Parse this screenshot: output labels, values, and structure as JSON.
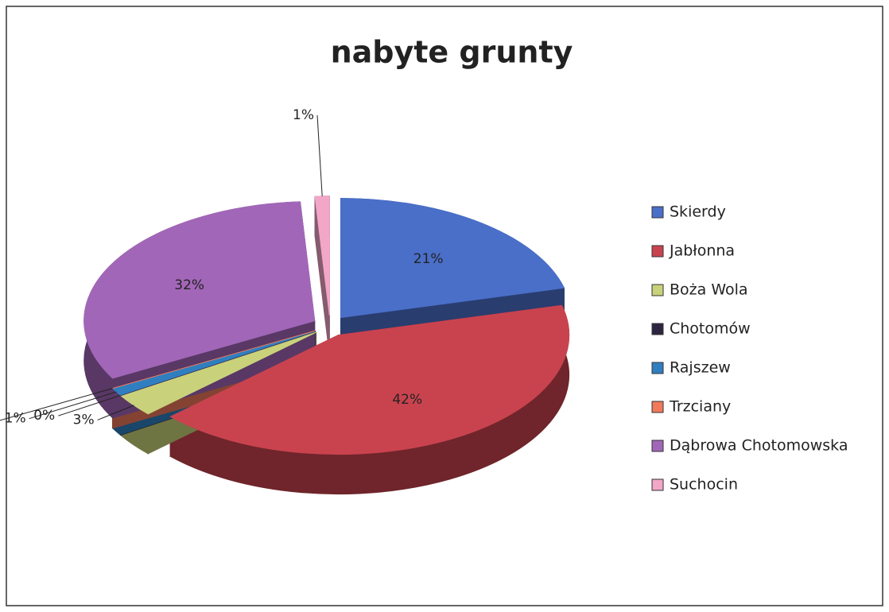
{
  "chart_data": {
    "type": "pie",
    "title": "nabyte grunty",
    "categories": [
      "Skierdy",
      "Jabłonna",
      "Boża Wola",
      "Chotomów",
      "Rajszew",
      "Trzciany",
      "Dąbrowa Chotomowska",
      "Suchocin"
    ],
    "values": [
      21,
      42,
      3,
      0,
      1,
      0,
      32,
      1
    ],
    "value_labels": [
      "21%",
      "42%",
      "3%",
      "0%",
      "1%",
      "0%",
      "32%",
      "1%"
    ],
    "colors": [
      "#4a6fc9",
      "#c9434f",
      "#c9d27a",
      "#2d2540",
      "#2f7fc0",
      "#f07a5a",
      "#a266b8",
      "#f2a6c8"
    ],
    "legend": "right"
  }
}
